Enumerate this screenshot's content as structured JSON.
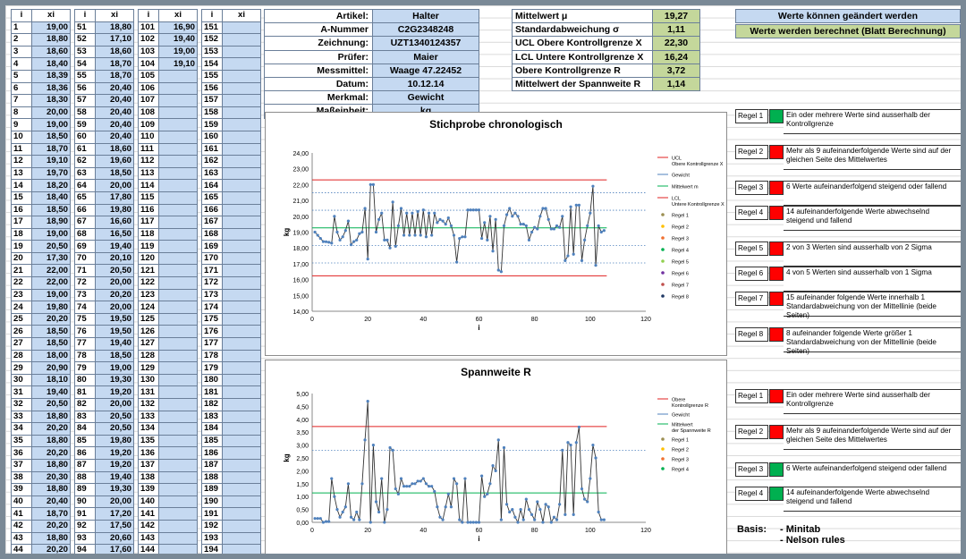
{
  "table": {
    "header_i": "i",
    "header_x": "xi",
    "col1": [
      [
        "1",
        "19,00"
      ],
      [
        "2",
        "18,80"
      ],
      [
        "3",
        "18,60"
      ],
      [
        "4",
        "18,40"
      ],
      [
        "5",
        "18,39"
      ],
      [
        "6",
        "18,36"
      ],
      [
        "7",
        "18,30"
      ],
      [
        "8",
        "20,00"
      ],
      [
        "9",
        "19,00"
      ],
      [
        "10",
        "18,50"
      ],
      [
        "11",
        "18,70"
      ],
      [
        "12",
        "19,10"
      ],
      [
        "13",
        "19,70"
      ],
      [
        "14",
        "18,20"
      ],
      [
        "15",
        "18,40"
      ],
      [
        "16",
        "18,50"
      ],
      [
        "17",
        "18,90"
      ],
      [
        "18",
        "19,00"
      ],
      [
        "19",
        "20,50"
      ],
      [
        "20",
        "17,30"
      ],
      [
        "21",
        "22,00"
      ],
      [
        "22",
        "22,00"
      ],
      [
        "23",
        "19,00"
      ],
      [
        "24",
        "19,80"
      ],
      [
        "25",
        "20,20"
      ],
      [
        "26",
        "18,50"
      ],
      [
        "27",
        "18,50"
      ],
      [
        "28",
        "18,00"
      ],
      [
        "29",
        "20,90"
      ],
      [
        "30",
        "18,10"
      ],
      [
        "31",
        "19,40"
      ],
      [
        "32",
        "20,50"
      ],
      [
        "33",
        "18,80"
      ],
      [
        "34",
        "20,20"
      ],
      [
        "35",
        "18,80"
      ],
      [
        "36",
        "20,20"
      ],
      [
        "37",
        "18,80"
      ],
      [
        "38",
        "20,30"
      ],
      [
        "39",
        "18,80"
      ],
      [
        "40",
        "20,40"
      ],
      [
        "41",
        "18,70"
      ],
      [
        "42",
        "20,20"
      ],
      [
        "43",
        "18,80"
      ],
      [
        "44",
        "20,20"
      ]
    ],
    "col2": [
      [
        "51",
        "18,80"
      ],
      [
        "52",
        "17,10"
      ],
      [
        "53",
        "18,60"
      ],
      [
        "54",
        "18,70"
      ],
      [
        "55",
        "18,70"
      ],
      [
        "56",
        "20,40"
      ],
      [
        "57",
        "20,40"
      ],
      [
        "58",
        "20,40"
      ],
      [
        "59",
        "20,40"
      ],
      [
        "60",
        "20,40"
      ],
      [
        "61",
        "18,60"
      ],
      [
        "62",
        "19,60"
      ],
      [
        "63",
        "18,50"
      ],
      [
        "64",
        "20,00"
      ],
      [
        "65",
        "17,80"
      ],
      [
        "66",
        "19,80"
      ],
      [
        "67",
        "16,60"
      ],
      [
        "68",
        "16,50"
      ],
      [
        "69",
        "19,40"
      ],
      [
        "70",
        "20,10"
      ],
      [
        "71",
        "20,50"
      ],
      [
        "72",
        "20,00"
      ],
      [
        "73",
        "20,20"
      ],
      [
        "74",
        "20,00"
      ],
      [
        "75",
        "19,50"
      ],
      [
        "76",
        "19,50"
      ],
      [
        "77",
        "19,40"
      ],
      [
        "78",
        "18,50"
      ],
      [
        "79",
        "19,00"
      ],
      [
        "80",
        "19,30"
      ],
      [
        "81",
        "19,20"
      ],
      [
        "82",
        "20,00"
      ],
      [
        "83",
        "20,50"
      ],
      [
        "84",
        "20,50"
      ],
      [
        "85",
        "19,80"
      ],
      [
        "86",
        "19,20"
      ],
      [
        "87",
        "19,20"
      ],
      [
        "88",
        "19,40"
      ],
      [
        "89",
        "19,30"
      ],
      [
        "90",
        "20,00"
      ],
      [
        "91",
        "17,20"
      ],
      [
        "92",
        "17,50"
      ],
      [
        "93",
        "20,60"
      ],
      [
        "94",
        "17,60"
      ]
    ],
    "col3": [
      [
        "101",
        "16,90"
      ],
      [
        "102",
        "19,40"
      ],
      [
        "103",
        "19,00"
      ],
      [
        "104",
        "19,10"
      ],
      [
        "105",
        ""
      ],
      [
        "106",
        ""
      ],
      [
        "107",
        ""
      ],
      [
        "108",
        ""
      ],
      [
        "109",
        ""
      ],
      [
        "110",
        ""
      ],
      [
        "111",
        ""
      ],
      [
        "112",
        ""
      ],
      [
        "113",
        ""
      ],
      [
        "114",
        ""
      ],
      [
        "115",
        ""
      ],
      [
        "116",
        ""
      ],
      [
        "117",
        ""
      ],
      [
        "118",
        ""
      ],
      [
        "119",
        ""
      ],
      [
        "120",
        ""
      ],
      [
        "121",
        ""
      ],
      [
        "122",
        ""
      ],
      [
        "123",
        ""
      ],
      [
        "124",
        ""
      ],
      [
        "125",
        ""
      ],
      [
        "126",
        ""
      ],
      [
        "127",
        ""
      ],
      [
        "128",
        ""
      ],
      [
        "129",
        ""
      ],
      [
        "130",
        ""
      ],
      [
        "131",
        ""
      ],
      [
        "132",
        ""
      ],
      [
        "133",
        ""
      ],
      [
        "134",
        ""
      ],
      [
        "135",
        ""
      ],
      [
        "136",
        ""
      ],
      [
        "137",
        ""
      ],
      [
        "138",
        ""
      ],
      [
        "139",
        ""
      ],
      [
        "140",
        ""
      ],
      [
        "141",
        ""
      ],
      [
        "142",
        ""
      ],
      [
        "143",
        ""
      ],
      [
        "144",
        ""
      ]
    ],
    "col4": [
      [
        "151",
        ""
      ],
      [
        "152",
        ""
      ],
      [
        "153",
        ""
      ],
      [
        "154",
        ""
      ],
      [
        "155",
        ""
      ],
      [
        "156",
        ""
      ],
      [
        "157",
        ""
      ],
      [
        "158",
        ""
      ],
      [
        "159",
        ""
      ],
      [
        "160",
        ""
      ],
      [
        "161",
        ""
      ],
      [
        "162",
        ""
      ],
      [
        "163",
        ""
      ],
      [
        "164",
        ""
      ],
      [
        "165",
        ""
      ],
      [
        "166",
        ""
      ],
      [
        "167",
        ""
      ],
      [
        "168",
        ""
      ],
      [
        "169",
        ""
      ],
      [
        "170",
        ""
      ],
      [
        "171",
        ""
      ],
      [
        "172",
        ""
      ],
      [
        "173",
        ""
      ],
      [
        "174",
        ""
      ],
      [
        "175",
        ""
      ],
      [
        "176",
        ""
      ],
      [
        "177",
        ""
      ],
      [
        "178",
        ""
      ],
      [
        "179",
        ""
      ],
      [
        "180",
        ""
      ],
      [
        "181",
        ""
      ],
      [
        "182",
        ""
      ],
      [
        "183",
        ""
      ],
      [
        "184",
        ""
      ],
      [
        "185",
        ""
      ],
      [
        "186",
        ""
      ],
      [
        "187",
        ""
      ],
      [
        "188",
        ""
      ],
      [
        "189",
        ""
      ],
      [
        "190",
        ""
      ],
      [
        "191",
        ""
      ],
      [
        "192",
        ""
      ],
      [
        "193",
        ""
      ],
      [
        "194",
        ""
      ]
    ]
  },
  "info": [
    {
      "label": "Artikel:",
      "value": "Halter"
    },
    {
      "label": "A-Nummer",
      "value": "C2G2348248"
    },
    {
      "label": "Zeichnung:",
      "value": "UZT1340124357"
    },
    {
      "label": "Prüfer:",
      "value": "Maier"
    },
    {
      "label": "Messmittel:",
      "value": "Waage 47.22452"
    },
    {
      "label": "Datum:",
      "value": "10.12.14"
    },
    {
      "label": "Merkmal:",
      "value": "Gewicht"
    },
    {
      "label": "Maßeinheit:",
      "value": "kg"
    }
  ],
  "stats": [
    {
      "label": "Mittelwert μ",
      "value": "19,27"
    },
    {
      "label": "Standardabweichung σ",
      "value": "1,11"
    },
    {
      "label": "UCL Obere Kontrollgrenze X",
      "value": "22,30"
    },
    {
      "label": "LCL Untere Kontrollgrenze X",
      "value": "16,24"
    },
    {
      "label": "Obere Kontrollgrenze R",
      "value": "3,72"
    },
    {
      "label": "Mittelwert der Spannweite R",
      "value": "1,14"
    }
  ],
  "legend": {
    "editable": "Werte können geändert werden",
    "computed": "Werte werden berechnet (Blatt Berechnung)"
  },
  "rules_x": [
    {
      "label": "Regel 1",
      "status": "#00b050",
      "text": "Ein oder mehrere Werte sind ausserhalb der Kontrollgrenze"
    },
    {
      "label": "Regel 2",
      "status": "#ff0000",
      "text": "Mehr als 9 aufeinanderfolgende Werte sind auf der gleichen Seite des Mittelwertes"
    },
    {
      "label": "Regel 3",
      "status": "#ff0000",
      "text": "6 Werte aufeinanderfolgend steigend oder fallend"
    },
    {
      "label": "Regel 4",
      "status": "#ff0000",
      "text": "14 aufeinanderfolgende Werte abwechselnd steigend und fallend"
    },
    {
      "label": "Regel 5",
      "status": "#ff0000",
      "text": "2 von 3 Werten sind ausserhalb von 2 Sigma"
    },
    {
      "label": "Regel 6",
      "status": "#ff0000",
      "text": "4 von 5 Werten sind ausserhalb von 1 Sigma"
    },
    {
      "label": "Regel 7",
      "status": "#ff0000",
      "text": "15 aufeinander folgende Werte innerhalb 1 Standardabweichung von der Mittellinie (beide Seiten)"
    },
    {
      "label": "Regel 8",
      "status": "#ff0000",
      "text": "8 aufeinander folgende Werte größer 1 Standardabweichung von der Mittellinie (beide Seiten)"
    }
  ],
  "rules_r": [
    {
      "label": "Regel 1",
      "status": "#ff0000",
      "text": "Ein oder mehrere Werte sind ausserhalb der Kontrollgrenze"
    },
    {
      "label": "Regel 2",
      "status": "#ff0000",
      "text": "Mehr als 9 aufeinanderfolgende Werte sind auf der gleichen Seite des Mittelwertes"
    },
    {
      "label": "Regel 3",
      "status": "#00b050",
      "text": "6 Werte aufeinanderfolgend steigend oder fallend"
    },
    {
      "label": "Regel 4",
      "status": "#00b050",
      "text": "14 aufeinanderfolgende Werte abwechselnd steigend und fallend"
    }
  ],
  "basis": {
    "label": "Basis:",
    "items": [
      "- Minitab",
      "- Nelson rules"
    ]
  },
  "chart_data": [
    {
      "type": "line",
      "title": "Stichprobe chronologisch",
      "xlabel": "i",
      "ylabel": "kg",
      "xlim": [
        0,
        120
      ],
      "ylim": [
        14,
        24
      ],
      "xticks": [
        "0",
        "20",
        "40",
        "60",
        "80",
        "100",
        "120"
      ],
      "yticks": [
        "14,00",
        "15,00",
        "16,00",
        "17,00",
        "18,00",
        "19,00",
        "20,00",
        "21,00",
        "22,00",
        "23,00",
        "24,00"
      ],
      "ucl": 22.3,
      "lcl": 16.24,
      "mean": 19.27,
      "sigma1": [
        18.16,
        20.38
      ],
      "sigma2": [
        17.05,
        21.49
      ],
      "series_values": [
        19.0,
        18.8,
        18.6,
        18.4,
        18.39,
        18.36,
        18.3,
        20.0,
        19.0,
        18.5,
        18.7,
        19.1,
        19.7,
        18.2,
        18.4,
        18.5,
        18.9,
        19.0,
        20.5,
        17.3,
        22.0,
        22.0,
        19.0,
        19.8,
        20.2,
        18.5,
        18.5,
        18.0,
        20.9,
        18.1,
        19.4,
        20.5,
        18.8,
        20.2,
        18.8,
        20.2,
        18.8,
        20.3,
        18.8,
        20.4,
        18.7,
        20.2,
        18.8,
        20.2,
        19.6,
        19.8,
        19.7,
        19.5,
        19.9,
        19.4,
        18.8,
        17.1,
        18.6,
        18.7,
        18.7,
        20.4,
        20.4,
        20.4,
        20.4,
        20.4,
        18.6,
        19.6,
        18.5,
        20.0,
        17.8,
        19.8,
        16.6,
        16.5,
        19.4,
        20.1,
        20.5,
        20.0,
        20.2,
        20.0,
        19.5,
        19.5,
        19.4,
        18.5,
        19.0,
        19.3,
        19.2,
        20.0,
        20.5,
        20.5,
        19.8,
        19.2,
        19.2,
        19.4,
        19.3,
        20.0,
        17.2,
        17.5,
        20.6,
        17.6,
        20.7,
        20.7,
        17.2,
        18.5,
        19.4,
        20.2,
        21.9,
        16.9,
        19.4,
        19.0,
        19.1
      ],
      "legend": [
        "UCL Obere Kontrollgrenze X",
        "Gewicht",
        "Mittelwert m",
        "LCL Untere Kontrollgrenze X",
        "Regel 1",
        "Regel 2",
        "Regel 3",
        "Regel 4",
        "Regel 5",
        "Regel 6",
        "Regel 7",
        "Regel 8"
      ]
    },
    {
      "type": "line",
      "title": "Spannweite R",
      "xlabel": "i",
      "ylabel": "kg",
      "xlim": [
        0,
        120
      ],
      "ylim": [
        0,
        5
      ],
      "xticks": [
        "0",
        "20",
        "40",
        "60",
        "80",
        "100",
        "120"
      ],
      "yticks": [
        "0,00",
        "0,50",
        "1,00",
        "1,50",
        "2,00",
        "2,50",
        "3,00",
        "3,50",
        "4,00",
        "4,50",
        "5,00"
      ],
      "ucl": 3.72,
      "mean": 1.14,
      "sigma1": [
        2.8
      ],
      "series_values": [
        0.15,
        0.15,
        0.15,
        0.0,
        0.03,
        0.03,
        1.7,
        1.0,
        0.5,
        0.2,
        0.4,
        0.6,
        1.5,
        0.2,
        0.1,
        0.4,
        0.1,
        1.5,
        3.2,
        4.7,
        0.0,
        3.0,
        0.8,
        0.4,
        1.7,
        0.0,
        0.5,
        2.9,
        2.8,
        1.3,
        1.1,
        1.7,
        1.4,
        1.4,
        1.4,
        1.5,
        1.5,
        1.6,
        1.6,
        1.7,
        1.5,
        1.4,
        1.4,
        1.2,
        0.6,
        0.2,
        0.1,
        0.6,
        1.1,
        0.6,
        1.7,
        1.5,
        0.1,
        0.0,
        1.7,
        0.0,
        0.0,
        0.0,
        0.0,
        0.0,
        1.8,
        1.0,
        1.1,
        1.5,
        2.2,
        2.0,
        3.2,
        0.1,
        2.9,
        0.7,
        0.4,
        0.5,
        0.2,
        0.0,
        0.5,
        0.1,
        0.9,
        0.5,
        0.3,
        0.1,
        0.8,
        0.5,
        0.0,
        0.7,
        0.6,
        0.0,
        0.2,
        0.1,
        0.7,
        2.8,
        0.3,
        3.1,
        3.0,
        0.3,
        3.1,
        3.7,
        1.3,
        0.9,
        0.8,
        1.7,
        3.0,
        2.5,
        0.4,
        0.1,
        0.1
      ],
      "legend": [
        "Obere Kontrollgrenze R",
        "Gewicht",
        "Mittelwert der Spannweite R",
        "Regel 1",
        "Regel 2",
        "Regel 3",
        "Regel 4"
      ]
    }
  ]
}
